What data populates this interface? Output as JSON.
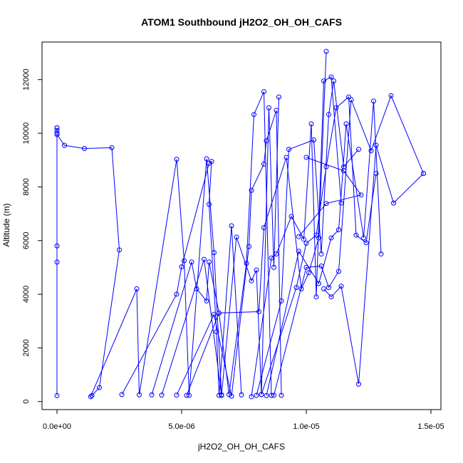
{
  "chart_data": {
    "type": "line",
    "title": "ATOM1 Southbound jH2O2_OH_OH_CAFS",
    "xlabel": "jH2O2_OH_OH_CAFS",
    "ylabel": "Altitude (m)",
    "xlim": [
      -6e-07,
      1.54e-05
    ],
    "ylim": [
      -300,
      13400
    ],
    "xticks": [
      {
        "value": 0,
        "label": "0.0e+00"
      },
      {
        "value": 5e-06,
        "label": "5.0e-06"
      },
      {
        "value": 1e-05,
        "label": "1.0e-05"
      },
      {
        "value": 1.5e-05,
        "label": "1.5e-05"
      }
    ],
    "yticks": [
      {
        "value": 0,
        "label": "0"
      },
      {
        "value": 2000,
        "label": "2000"
      },
      {
        "value": 4000,
        "label": "4000"
      },
      {
        "value": 6000,
        "label": "6000"
      },
      {
        "value": 8000,
        "label": "8000"
      },
      {
        "value": 10000,
        "label": "10000"
      },
      {
        "value": 12000,
        "label": "12000"
      }
    ],
    "grid": false,
    "legend": "none",
    "line_color": "#0000ff",
    "marker": "open-circle",
    "series": [
      {
        "x": [
          0.0,
          0.0,
          0.0,
          0.0,
          0.0
        ],
        "y": [
          220,
          5200,
          5800,
          10000,
          10200
        ]
      },
      {
        "x": [
          0.0,
          0.0,
          0.0,
          3e-07,
          1.1e-06,
          2.2e-06,
          2.5e-06,
          1.7e-06,
          1.4e-06
        ],
        "y": [
          10200,
          10100,
          9950,
          9550,
          9430,
          9460,
          5650,
          520,
          220
        ]
      },
      {
        "x": [
          1.35e-06,
          3.2e-06,
          3.3e-06,
          4.8e-06,
          5.1e-06,
          5.3e-06,
          6e-06,
          6.3e-06,
          6.6e-06
        ],
        "y": [
          180,
          4200,
          250,
          9030,
          5250,
          230,
          9050,
          5550,
          250
        ]
      },
      {
        "x": [
          2.6e-06,
          4.8e-06,
          5e-06,
          6.1e-06,
          6.2e-06,
          6.1e-06,
          6.4e-06,
          6.5e-06,
          7e-06,
          7.4e-06
        ],
        "y": [
          260,
          4000,
          5020,
          8880,
          8950,
          7350,
          2600,
          230,
          6550,
          250
        ]
      },
      {
        "x": [
          3.8e-06,
          5.4e-06,
          5.6e-06,
          6e-06,
          6.1e-06,
          6.5e-06,
          6.9e-06,
          7.6e-06,
          7.9e-06,
          8.3e-06,
          8.6e-06
        ],
        "y": [
          250,
          5200,
          4200,
          3750,
          5200,
          3300,
          260,
          5150,
          10700,
          11550,
          230
        ]
      },
      {
        "x": [
          4.2e-06,
          5.9e-06,
          6.6e-06,
          7.2e-06,
          7.8e-06,
          8e-06,
          8.2e-06,
          8.5e-06,
          8.7e-06,
          8.9e-06
        ],
        "y": [
          240,
          5300,
          230,
          6130,
          4500,
          4900,
          260,
          10950,
          5000,
          11350
        ]
      },
      {
        "x": [
          4.8e-06,
          6.3e-06,
          7e-06,
          7.7e-06,
          7.8e-06,
          8.3e-06,
          8.4e-06,
          8.8e-06,
          9e-06
        ],
        "y": [
          240,
          3250,
          200,
          5780,
          7870,
          8850,
          9720,
          10850,
          230
        ]
      },
      {
        "x": [
          5.2e-06,
          6.5e-06,
          8.1e-06,
          8.3e-06,
          9.2e-06,
          9.8e-06,
          1.01e-05,
          1.05e-05,
          1.08e-05
        ],
        "y": [
          230,
          3300,
          3350,
          6480,
          9100,
          4200,
          4800,
          6100,
          13050
        ]
      },
      {
        "x": [
          7.8e-06,
          8.6e-06,
          8.8e-06,
          9.4e-06,
          9.9e-06,
          1.02e-05,
          1.04e-05,
          1.07e-05,
          1.1e-05,
          1.14e-05
        ],
        "y": [
          180,
          5350,
          5500,
          6900,
          6050,
          10350,
          3900,
          11950,
          12100,
          7400
        ]
      },
      {
        "x": [
          8e-06,
          9e-06,
          9.3e-06,
          1.03e-05,
          1.06e-05,
          1.09e-05,
          1.11e-05,
          1.15e-05,
          1.21e-05
        ],
        "y": [
          230,
          3750,
          9400,
          9750,
          5500,
          10700,
          11950,
          8750,
          9400
        ]
      },
      {
        "x": [
          8.2e-06,
          9.6e-06,
          1e-05,
          1.04e-05,
          1.08e-05,
          1.12e-05,
          1.17e-05,
          1.2e-05,
          1.24e-05,
          1.28e-05
        ],
        "y": [
          260,
          4250,
          5900,
          6200,
          8750,
          10950,
          11350,
          6200,
          5920,
          8500
        ]
      },
      {
        "x": [
          8.4e-06,
          9.7e-06,
          1.05e-05,
          1.1e-05,
          1.13e-05,
          1.16e-05,
          1.23e-05,
          1.27e-05,
          1.3e-05
        ],
        "y": [
          220,
          5600,
          4400,
          6100,
          6400,
          10350,
          6100,
          11200,
          5500
        ]
      },
      {
        "x": [
          8.7e-06,
          1e-05,
          1.06e-05,
          1.09e-05,
          1.13e-05,
          1.18e-05,
          1.26e-05,
          1.34e-05,
          1.47e-05
        ],
        "y": [
          230,
          5000,
          5050,
          4250,
          4850,
          11250,
          9350,
          11400,
          8500
        ]
      },
      {
        "x": [
          1.47e-05,
          1.35e-05,
          1.28e-05,
          1.21e-05,
          1.14e-05,
          1.1e-05,
          1.07e-05
        ],
        "y": [
          8500,
          7400,
          9550,
          650,
          4300,
          3900,
          4200
        ]
      },
      {
        "x": [
          1e-05,
          1.15e-05,
          1.22e-05,
          1.08e-05,
          9.7e-06
        ],
        "y": [
          9100,
          8600,
          7700,
          7380,
          6150
        ]
      }
    ]
  }
}
